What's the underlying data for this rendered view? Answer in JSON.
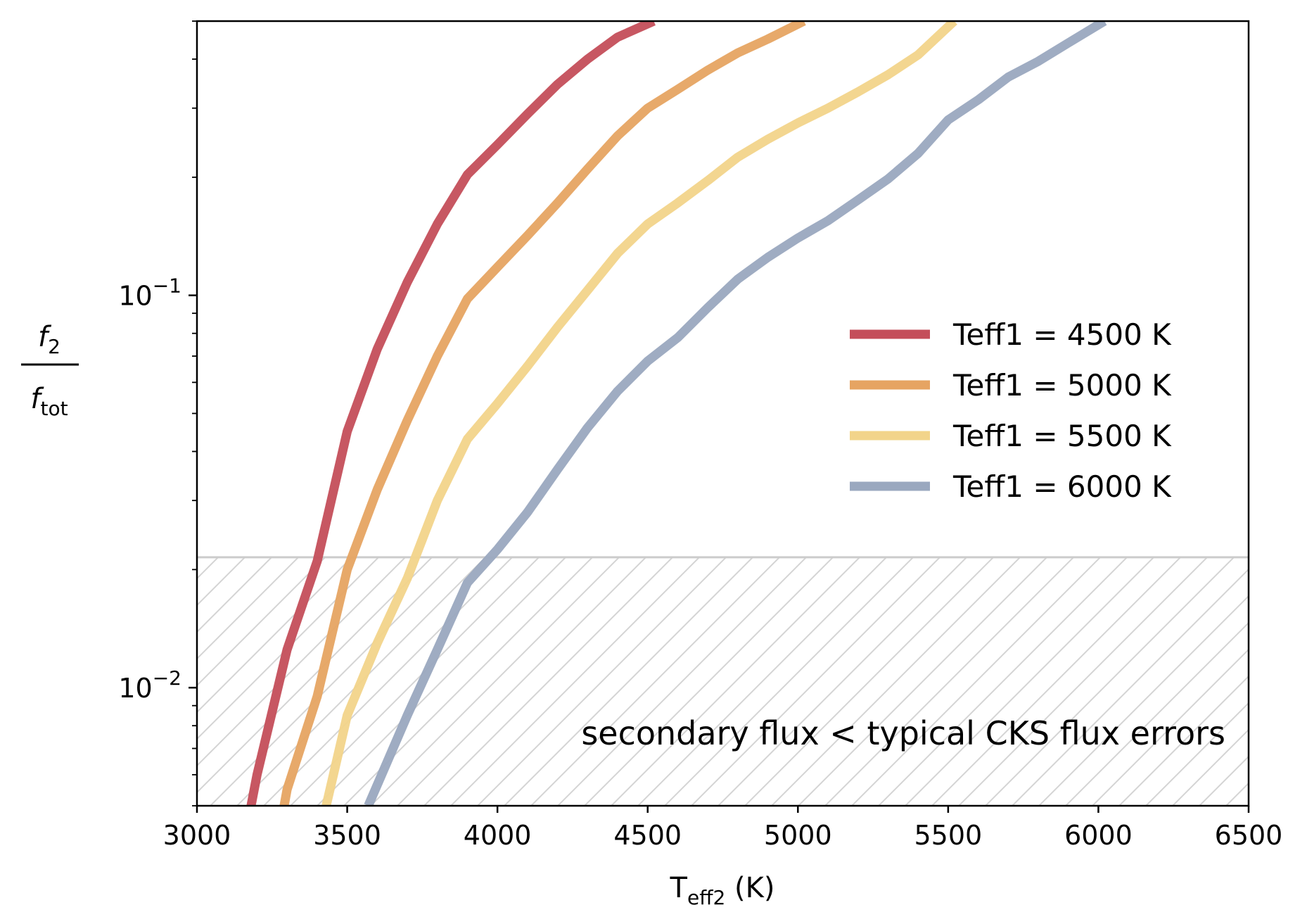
{
  "chart_data": {
    "type": "line",
    "title": "",
    "xlabel": {
      "base": "T",
      "sub": "eff2",
      "suffix": " (K)"
    },
    "ylabel": {
      "numerator": "f",
      "numerator_sub": "2",
      "denominator": "f",
      "denominator_sub": "tot"
    },
    "xlim": [
      3000,
      6500
    ],
    "ylim": [
      0.005,
      0.5
    ],
    "yscale": "log",
    "xticks": [
      3000,
      3500,
      4000,
      4500,
      5000,
      5500,
      6000,
      6500
    ],
    "xtick_labels": [
      "3000",
      "3500",
      "4000",
      "4500",
      "5000",
      "5500",
      "6000",
      "6500"
    ],
    "yticks": [
      {
        "value": 0.1,
        "base": "10",
        "exp": "−1"
      },
      {
        "value": 0.01,
        "base": "10",
        "exp": "−2"
      }
    ],
    "grid": false,
    "legend_position": "right",
    "threshold": {
      "value": 0.0215,
      "label": "secondary flux < typical CKS flux errors"
    },
    "colors": {
      "threshold_line": "#cccccc",
      "hatch": "#d4d4d4"
    },
    "series": [
      {
        "name": "Teff1 = 4500 K",
        "color": "#c44e5a",
        "x": [
          3180,
          3200,
          3300,
          3400,
          3500,
          3600,
          3700,
          3800,
          3900,
          4000,
          4100,
          4200,
          4300,
          4400,
          4520
        ],
        "y": [
          0.005,
          0.006,
          0.0125,
          0.021,
          0.045,
          0.073,
          0.108,
          0.152,
          0.203,
          0.242,
          0.29,
          0.345,
          0.4,
          0.455,
          0.5
        ]
      },
      {
        "name": "Teff1 = 5000 K",
        "color": "#e6a462",
        "x": [
          3290,
          3300,
          3400,
          3500,
          3600,
          3700,
          3800,
          3900,
          4000,
          4100,
          4200,
          4300,
          4400,
          4500,
          4600,
          4700,
          4800,
          4900,
          5020
        ],
        "y": [
          0.005,
          0.0055,
          0.0095,
          0.02,
          0.032,
          0.048,
          0.07,
          0.098,
          0.118,
          0.142,
          0.172,
          0.21,
          0.255,
          0.3,
          0.335,
          0.375,
          0.415,
          0.45,
          0.5
        ]
      },
      {
        "name": "Teff1 = 5500 K",
        "color": "#f2d48a",
        "x": [
          3430,
          3500,
          3600,
          3700,
          3800,
          3900,
          4000,
          4100,
          4200,
          4300,
          4400,
          4500,
          4600,
          4700,
          4800,
          4900,
          5000,
          5100,
          5200,
          5300,
          5400,
          5520
        ],
        "y": [
          0.005,
          0.0085,
          0.013,
          0.019,
          0.03,
          0.043,
          0.053,
          0.066,
          0.083,
          0.103,
          0.128,
          0.152,
          0.172,
          0.196,
          0.225,
          0.25,
          0.275,
          0.3,
          0.33,
          0.365,
          0.41,
          0.5
        ]
      },
      {
        "name": "Teff1 = 6000 K",
        "color": "#9aa8bf",
        "x": [
          3570,
          3700,
          3800,
          3900,
          4000,
          4100,
          4200,
          4300,
          4400,
          4500,
          4600,
          4700,
          4800,
          4900,
          5000,
          5100,
          5200,
          5300,
          5400,
          5500,
          5600,
          5700,
          5800,
          5900,
          6020
        ],
        "y": [
          0.005,
          0.0085,
          0.0125,
          0.0185,
          0.0225,
          0.028,
          0.036,
          0.046,
          0.057,
          0.068,
          0.078,
          0.093,
          0.11,
          0.125,
          0.14,
          0.155,
          0.175,
          0.198,
          0.23,
          0.28,
          0.315,
          0.36,
          0.395,
          0.44,
          0.5
        ]
      }
    ]
  }
}
